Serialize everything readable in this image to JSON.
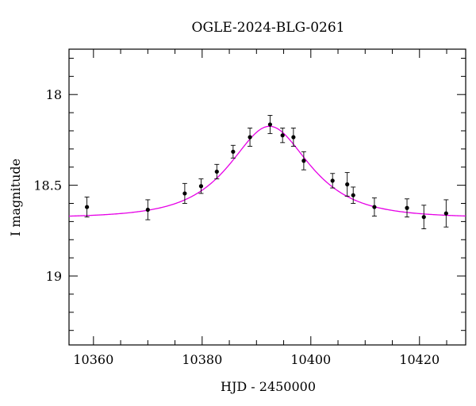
{
  "chart_data": {
    "type": "scatter",
    "title": "OGLE-2024-BLG-0261",
    "xlabel": "HJD - 2450000",
    "ylabel": "I magnitude",
    "xlim": [
      10355.5,
      10428.5
    ],
    "ylim": [
      19.38,
      17.75
    ],
    "y_inverted": true,
    "grid": false,
    "x_major_ticks": [
      10360,
      10380,
      10400,
      10420
    ],
    "x_tick_labels": [
      "10360",
      "10380",
      "10400",
      "10420"
    ],
    "x_minor_step": 5,
    "y_major_ticks": [
      18,
      18.5,
      19
    ],
    "y_tick_labels": [
      "18",
      "18.5",
      "19"
    ],
    "y_minor_step": 0.1,
    "colors": {
      "model": "#e600e6",
      "points": "#000000"
    },
    "series": [
      {
        "kind": "points_with_errorbars",
        "x": [
          10358.8,
          10370.0,
          10376.8,
          10379.8,
          10382.7,
          10385.7,
          10388.8,
          10392.5,
          10394.8,
          10396.8,
          10398.7,
          10404.0,
          10406.7,
          10407.8,
          10411.7,
          10417.7,
          10420.8,
          10424.9
        ],
        "y": [
          18.62,
          18.635,
          18.545,
          18.505,
          18.425,
          18.315,
          18.235,
          18.165,
          18.225,
          18.235,
          18.365,
          18.475,
          18.495,
          18.555,
          18.62,
          18.625,
          18.675,
          18.655
        ],
        "yerr": [
          0.055,
          0.055,
          0.055,
          0.04,
          0.04,
          0.035,
          0.05,
          0.05,
          0.04,
          0.05,
          0.05,
          0.04,
          0.065,
          0.045,
          0.05,
          0.05,
          0.065,
          0.075
        ]
      },
      {
        "kind": "model_curve",
        "baseline": 18.679,
        "peak_mag": 18.175,
        "t0": 10392.4,
        "tE": 10.2
      }
    ]
  }
}
